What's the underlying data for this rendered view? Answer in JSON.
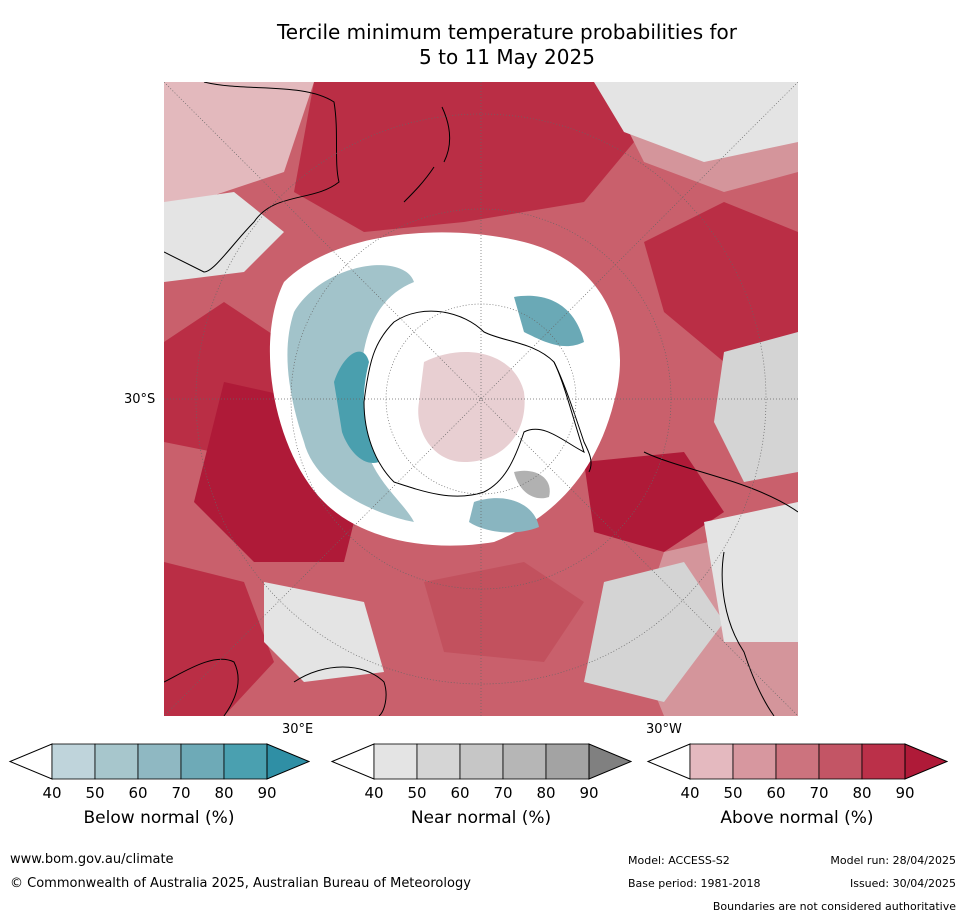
{
  "title": {
    "line1": "Tercile minimum temperature probabilities for",
    "line2": "5 to 11 May 2025"
  },
  "map": {
    "projection": "south polar stereographic",
    "lat_label": "30°S",
    "lon_labels": {
      "east": "30°E",
      "west": "30°W"
    },
    "colors": {
      "above": [
        "#e3b9bd",
        "#d4959b",
        "#cb717b",
        "#c2515e",
        "#ba2e45",
        "#af1a38"
      ],
      "below": [
        "#bad1d8",
        "#a2c3ca",
        "#89b5c0",
        "#6aa9b6",
        "#4a9fae",
        "#2d89a0"
      ],
      "near": [
        "#e4e4e4",
        "#d4d4d4",
        "#c4c4c4",
        "#b1b1b1",
        "#a0a0a0",
        "#7e7e7e"
      ]
    }
  },
  "colorbars": [
    {
      "id": "below",
      "title": "Below normal (%)",
      "ticks": [
        "40",
        "50",
        "60",
        "70",
        "80",
        "90"
      ],
      "colors": [
        "#bfd4db",
        "#a7c6cc",
        "#8fb8c2",
        "#6eaab7",
        "#4aa0b0",
        "#2f8fa5"
      ]
    },
    {
      "id": "near",
      "title": "Near normal (%)",
      "ticks": [
        "40",
        "50",
        "60",
        "70",
        "80",
        "90"
      ],
      "colors": [
        "#e4e4e4",
        "#d5d5d5",
        "#c6c6c6",
        "#b6b6b6",
        "#a3a3a3",
        "#808080"
      ]
    },
    {
      "id": "above",
      "title": "Above normal (%)",
      "ticks": [
        "40",
        "50",
        "60",
        "70",
        "80",
        "90"
      ],
      "colors": [
        "#e4b9bf",
        "#d7979f",
        "#cc737e",
        "#c35565",
        "#bb3049",
        "#af1a38"
      ]
    }
  ],
  "footer": {
    "website": "www.bom.gov.au/climate",
    "copyright": "© Commonwealth of Australia 2025, Australian Bureau of Meteorology",
    "model": "Model: ACCESS-S2",
    "model_run": "Model run: 28/04/2025",
    "base_period": "Base period: 1981-2018",
    "issued": "Issued: 30/04/2025",
    "disclaimer": "Boundaries are not considered authoritative"
  }
}
